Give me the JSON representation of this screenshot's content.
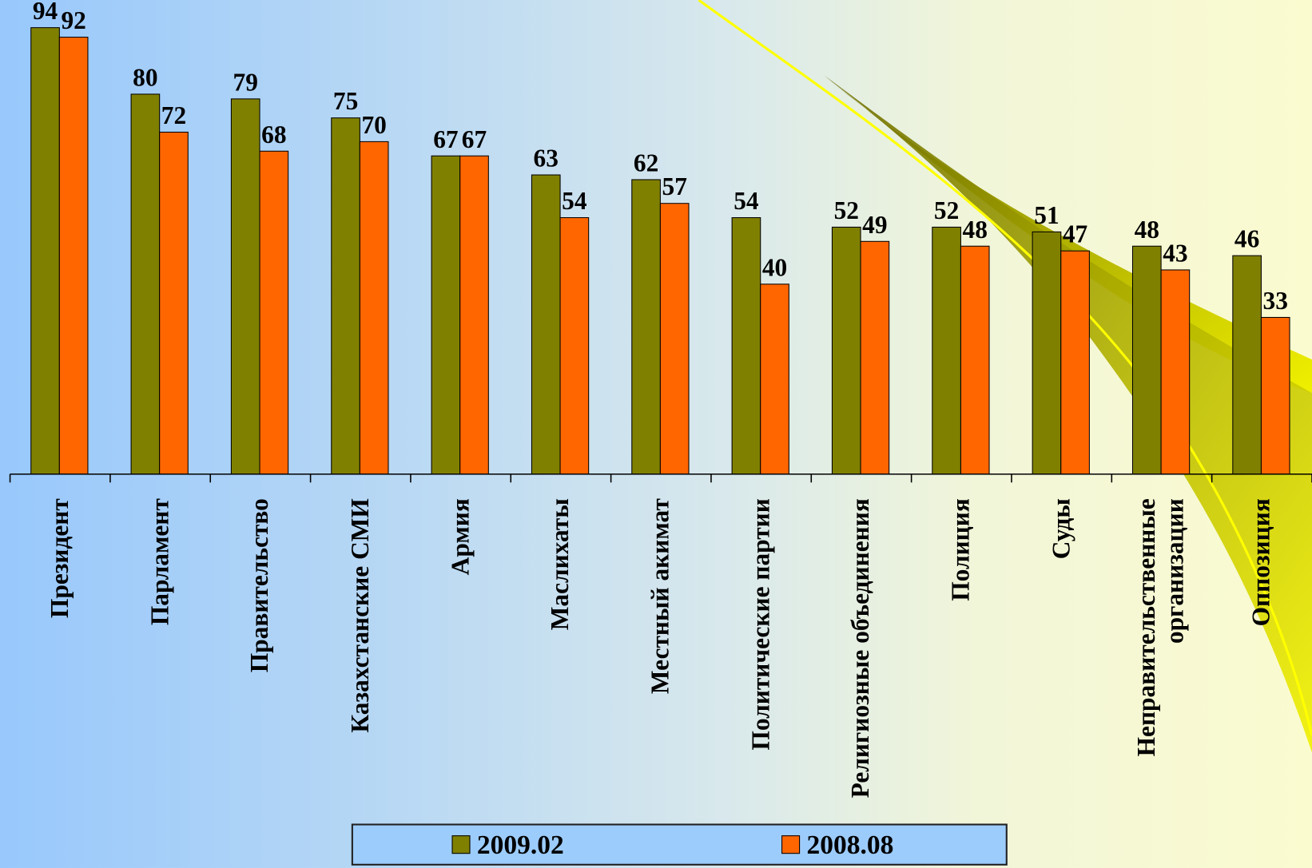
{
  "chart_data": {
    "type": "bar",
    "categories": [
      "Президент",
      "Парламент",
      "Правительство",
      "Казахстанские СМИ",
      "Армия",
      "Маслихаты",
      "Местный акимат",
      "Политические партии",
      "Религиозные объединения",
      "Полиция",
      "Суды",
      "Неправительственные организации",
      "Оппозиция"
    ],
    "series": [
      {
        "name": "2009.02",
        "color": "#808000",
        "values": [
          94,
          80,
          79,
          75,
          67,
          63,
          62,
          54,
          52,
          52,
          51,
          48,
          46
        ]
      },
      {
        "name": "2008.08",
        "color": "#ff6600",
        "values": [
          92,
          72,
          68,
          70,
          67,
          54,
          57,
          40,
          49,
          48,
          47,
          43,
          33
        ]
      }
    ]
  }
}
